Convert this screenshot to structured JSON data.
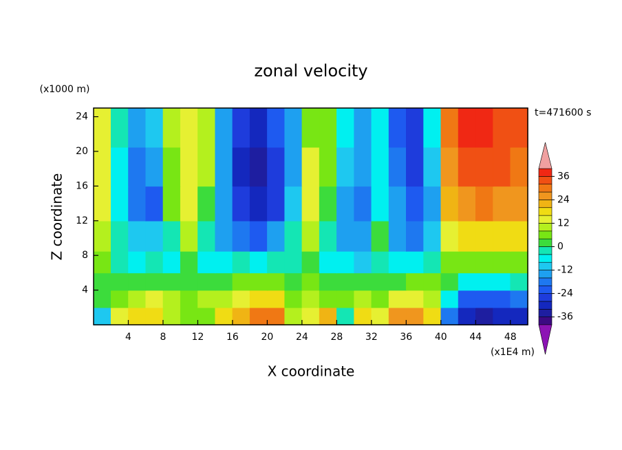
{
  "chart_data": {
    "type": "contour",
    "title": "zonal velocity",
    "y_unit": "(x1000 m)",
    "x_unit": "(x1E4 m)",
    "time_label": "t=471600 s",
    "x_label": "X coordinate",
    "y_label": "Z coordinate",
    "xlim": [
      0,
      50
    ],
    "ylim": [
      0,
      25
    ],
    "xticks": [
      4,
      8,
      12,
      16,
      20,
      24,
      28,
      32,
      36,
      40,
      44,
      48
    ],
    "yticks": [
      4,
      8,
      12,
      16,
      20,
      24
    ],
    "x": [
      1,
      3,
      5,
      7,
      9,
      11,
      13,
      15,
      17,
      19,
      21,
      23,
      25,
      27,
      29,
      31,
      33,
      35,
      37,
      39,
      41,
      43,
      45,
      47,
      49
    ],
    "y": [
      1,
      3,
      5,
      7,
      10,
      14,
      18,
      23
    ],
    "values": [
      [
        -10,
        14,
        18,
        16,
        10,
        6,
        4,
        16,
        22,
        28,
        30,
        8,
        14,
        20,
        -4,
        16,
        12,
        24,
        26,
        16,
        -20,
        -32,
        -34,
        -32,
        -30
      ],
      [
        2,
        6,
        10,
        14,
        8,
        4,
        8,
        10,
        14,
        16,
        18,
        6,
        8,
        6,
        6,
        8,
        6,
        12,
        14,
        8,
        -6,
        -22,
        -24,
        -24,
        -20
      ],
      [
        2,
        2,
        0,
        2,
        0,
        2,
        2,
        2,
        4,
        6,
        4,
        0,
        4,
        0,
        2,
        2,
        2,
        2,
        4,
        4,
        0,
        -6,
        -8,
        -6,
        -4
      ],
      [
        6,
        -2,
        -6,
        -4,
        -6,
        0,
        -6,
        -8,
        -4,
        -6,
        -4,
        -4,
        0,
        -6,
        -6,
        -10,
        -4,
        -8,
        -8,
        -2,
        6,
        4,
        4,
        4,
        6
      ],
      [
        10,
        -4,
        -10,
        -10,
        -2,
        8,
        -4,
        -16,
        -20,
        -22,
        -16,
        -2,
        8,
        -4,
        -14,
        -16,
        0,
        -14,
        -18,
        -10,
        14,
        16,
        18,
        16,
        16
      ],
      [
        12,
        -8,
        -18,
        -22,
        4,
        14,
        2,
        -16,
        -28,
        -30,
        -26,
        -10,
        12,
        2,
        -14,
        -18,
        -8,
        -14,
        -24,
        -14,
        22,
        26,
        28,
        26,
        26
      ],
      [
        12,
        -6,
        -20,
        -16,
        6,
        14,
        8,
        -14,
        -30,
        -34,
        -26,
        -14,
        12,
        6,
        -12,
        -16,
        -6,
        -18,
        -26,
        -12,
        24,
        32,
        34,
        32,
        30
      ],
      [
        14,
        -4,
        -16,
        -12,
        8,
        12,
        10,
        -14,
        -28,
        -32,
        -24,
        -16,
        6,
        4,
        -8,
        -14,
        -6,
        -22,
        -28,
        -8,
        28,
        36,
        36,
        34,
        32
      ]
    ],
    "colorbar": {
      "levels": [
        -40,
        -36,
        -32,
        -28,
        -24,
        -20,
        -16,
        -12,
        -8,
        -4,
        0,
        4,
        8,
        12,
        16,
        20,
        24,
        28,
        32,
        36,
        40
      ],
      "ticks": [
        -36,
        -24,
        -12,
        0,
        12,
        24,
        36
      ],
      "colors": [
        "#3c0a82",
        "#1e1ea0",
        "#1428be",
        "#1e3cdc",
        "#1e5af0",
        "#1e78f0",
        "#1ea0f0",
        "#1ec8f0",
        "#00f0f0",
        "#14e6b4",
        "#3cdc3c",
        "#78e614",
        "#b4f01e",
        "#e6f032",
        "#f0dc14",
        "#f0b414",
        "#f0961e",
        "#f07814",
        "#f05014",
        "#f02814"
      ],
      "over_color": "#f0a0a0",
      "under_color": "#8c14b4"
    }
  }
}
